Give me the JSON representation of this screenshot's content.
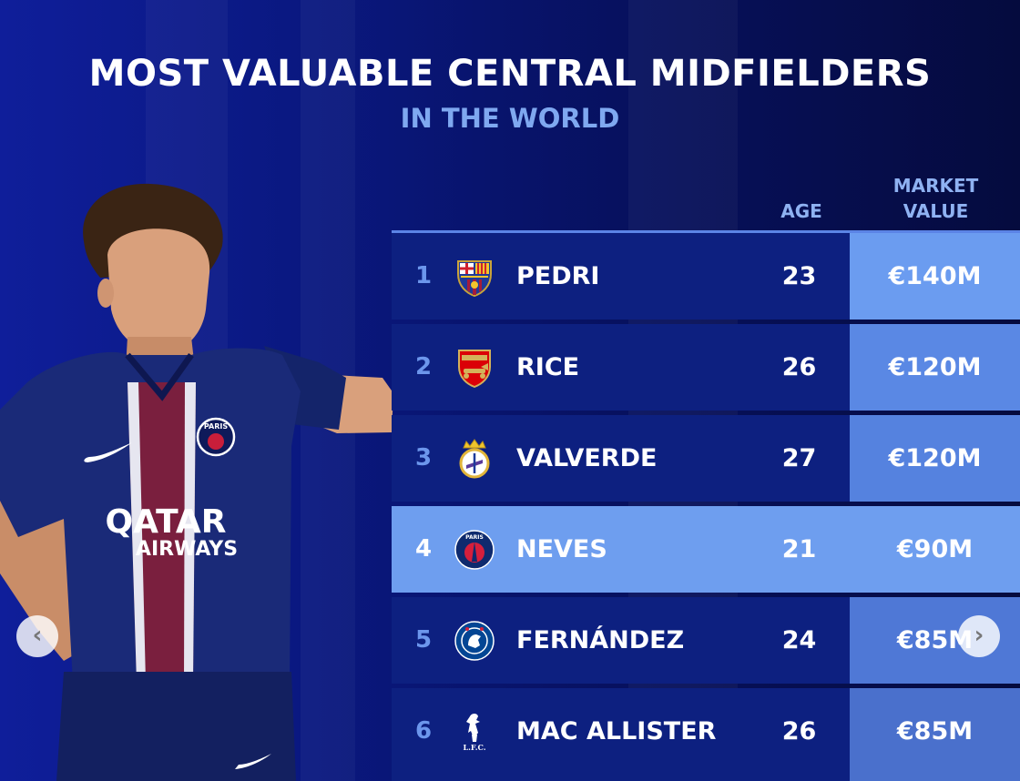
{
  "header": {
    "title": "MOST VALUABLE CENTRAL MIDFIELDERS",
    "subtitle": "IN THE WORLD"
  },
  "columns": {
    "age": "AGE",
    "market_value_line1": "MARKET",
    "market_value_line2": "VALUE"
  },
  "rows": [
    {
      "rank": "1",
      "crest": "barcelona-crest-icon",
      "name": "PEDRI",
      "age": "23",
      "value": "€140M"
    },
    {
      "rank": "2",
      "crest": "arsenal-crest-icon",
      "name": "RICE",
      "age": "26",
      "value": "€120M"
    },
    {
      "rank": "3",
      "crest": "real-madrid-crest-icon",
      "name": "VALVERDE",
      "age": "27",
      "value": "€120M"
    },
    {
      "rank": "4",
      "crest": "psg-crest-icon",
      "name": "NEVES",
      "age": "21",
      "value": "€90M"
    },
    {
      "rank": "5",
      "crest": "chelsea-crest-icon",
      "name": "FERNÁNDEZ",
      "age": "24",
      "value": "€85M"
    },
    {
      "rank": "6",
      "crest": "liverpool-crest-icon",
      "name": "MAC ALLISTER",
      "age": "26",
      "value": "€85M"
    }
  ],
  "player_kit": {
    "sponsor_line1": "QATAR",
    "sponsor_line2": "AIRWAYS",
    "badge_text": "PARIS"
  },
  "crest_text": {
    "liverpool": "L.F.C.",
    "psg": "PARIS"
  },
  "nav": {
    "prev_icon": "‹",
    "next_icon": "›"
  },
  "colors": {
    "background": "#0a1880",
    "row": "#0d2080",
    "highlight_row": "#6e9eef",
    "rank_text": "#6c96ec",
    "subtitle": "#7fa8f0",
    "value_col_shades": [
      "#6b9cf0",
      "#5a88e4",
      "#5582df",
      "#6e9eef",
      "#4f78d6",
      "#4a70cc"
    ]
  }
}
